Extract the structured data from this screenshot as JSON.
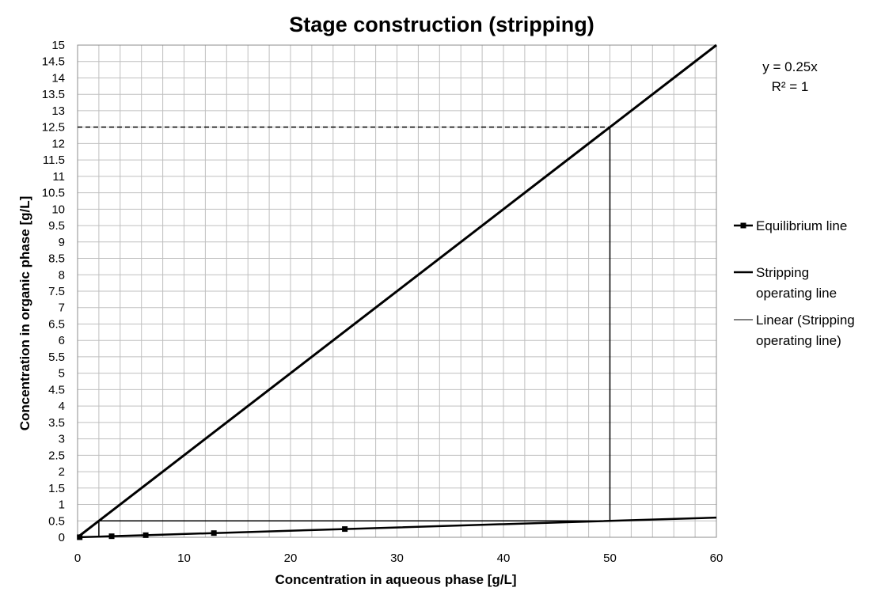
{
  "chart_data": {
    "type": "line",
    "title": "Stage construction (stripping)",
    "xlabel": "Concentration  in  aqueous phase  [g/L]",
    "ylabel": "Concentration  in  organic  phase  [g/L]",
    "xlim": [
      0,
      60
    ],
    "ylim": [
      0,
      15
    ],
    "x_ticks": [
      0,
      10,
      20,
      30,
      40,
      50,
      60
    ],
    "y_ticks": [
      0,
      0.5,
      1,
      1.5,
      2,
      2.5,
      3,
      3.5,
      4,
      4.5,
      5,
      5.5,
      6,
      6.5,
      7,
      7.5,
      8,
      8.5,
      9,
      9.5,
      10,
      10.5,
      11,
      11.5,
      12,
      12.5,
      13,
      13.5,
      14,
      14.5,
      15
    ],
    "grid": true,
    "legend_position": "right",
    "series": [
      {
        "name": "Equilibrium line",
        "marker": "square",
        "x": [
          0.2,
          3.2,
          6.4,
          12.8,
          25.1,
          60
        ],
        "y": [
          0.002,
          0.032,
          0.064,
          0.128,
          0.251,
          0.6
        ]
      },
      {
        "name": "Stripping operating line",
        "x": [
          0,
          60
        ],
        "y": [
          0,
          15
        ]
      },
      {
        "name": "Linear (Stripping operating line)",
        "x": [
          0,
          60
        ],
        "y": [
          0,
          15
        ]
      }
    ],
    "trendline_equation": "y = 0.25x",
    "trendline_r2": "R² = 1",
    "stage_steps": [
      {
        "x1": 50,
        "y1": 12.5,
        "x2": 50,
        "y2": 0.5
      },
      {
        "x1": 50,
        "y1": 0.5,
        "x2": 2,
        "y2": 0.5
      },
      {
        "x1": 2,
        "y1": 0.5,
        "x2": 2,
        "y2": 0.02
      }
    ],
    "dashed_guides": [
      {
        "x1": 0,
        "y1": 12.5,
        "x2": 50,
        "y2": 12.5
      }
    ],
    "colors": {
      "line": "#000000",
      "grid": "#bfbfbf"
    }
  }
}
